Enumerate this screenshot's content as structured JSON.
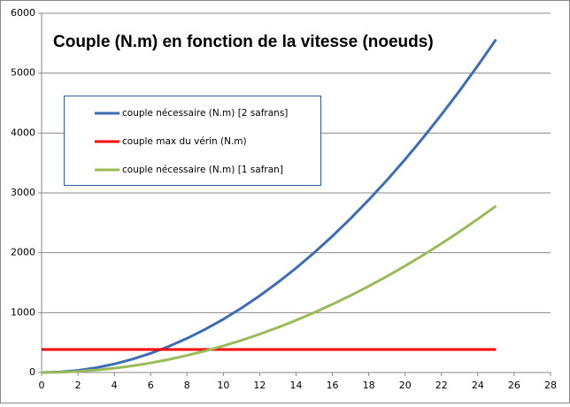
{
  "chart_data": {
    "type": "line",
    "title": "Couple (N.m) en fonction de la vitesse (noeuds)",
    "x": [
      0,
      1,
      2,
      3,
      4,
      5,
      6,
      7,
      8,
      9,
      10,
      11,
      12,
      13,
      14,
      15,
      16,
      17,
      18,
      19,
      20,
      21,
      22,
      23,
      24,
      25
    ],
    "series": [
      {
        "name": "couple nécessaire (N.m) [2 safrans]",
        "color": "#3d6db5",
        "values": [
          0,
          9,
          36,
          80,
          142,
          223,
          320,
          436,
          570,
          721,
          890,
          1077,
          1282,
          1504,
          1744,
          2003,
          2278,
          2572,
          2884,
          3213,
          3560,
          3925,
          4308,
          4708,
          5126,
          5563
        ]
      },
      {
        "name": "couple max du vérin (N.m)",
        "color": "#ff0000",
        "values": [
          385,
          385,
          385,
          385,
          385,
          385,
          385,
          385,
          385,
          385,
          385,
          385,
          385,
          385,
          385,
          385,
          385,
          385,
          385,
          385,
          385,
          385,
          385,
          385,
          385,
          385
        ]
      },
      {
        "name": "couple nécessaire (N.m) [1 safran]",
        "color": "#9bbb59",
        "values": [
          0,
          4,
          18,
          40,
          71,
          111,
          160,
          218,
          285,
          360,
          445,
          538,
          641,
          752,
          872,
          1001,
          1139,
          1286,
          1442,
          1606,
          1780,
          1962,
          2154,
          2354,
          2563,
          2781
        ]
      }
    ],
    "xlim": [
      0,
      28
    ],
    "xticks": [
      0,
      2,
      4,
      6,
      8,
      10,
      12,
      14,
      16,
      18,
      20,
      22,
      24,
      26,
      28
    ],
    "ylim": [
      0,
      6000
    ],
    "yticks": [
      0,
      1000,
      2000,
      3000,
      4000,
      5000,
      6000
    ],
    "grid": true,
    "legend_position": "upper-left"
  }
}
